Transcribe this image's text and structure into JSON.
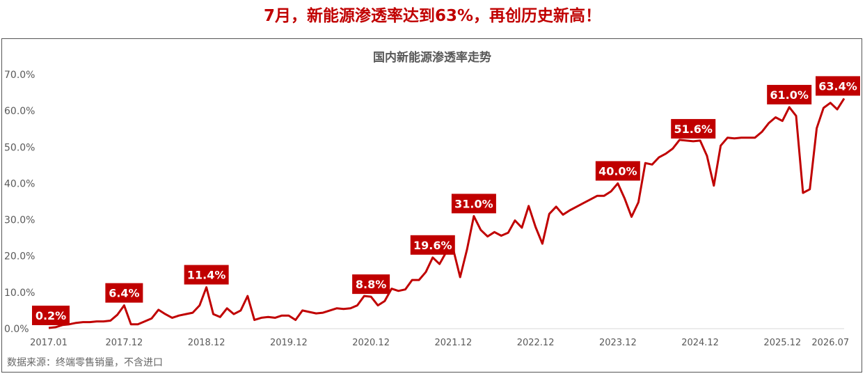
{
  "headline": "7月，新能源渗透率达到63%，再创历史新高！",
  "source_note": "数据来源：终端零售销量，不含进口",
  "colors": {
    "accent": "#c00000",
    "line": "#c00000",
    "label_bg": "#c00000",
    "label_text": "#ffffff",
    "axis_text": "#595959"
  },
  "chart_data": {
    "type": "line",
    "title": "国内新能源渗透率走势",
    "xlabel": "",
    "ylabel": "",
    "ylim": [
      0,
      70
    ],
    "yticks": [
      "0.0%",
      "10.0%",
      "20.0%",
      "30.0%",
      "40.0%",
      "50.0%",
      "60.0%",
      "70.0%"
    ],
    "xticks": [
      "2017.01",
      "2017.12",
      "2018.12",
      "2019.12",
      "2020.12",
      "2021.12",
      "2022.12",
      "2023.12",
      "2024.12",
      "2025.12",
      "2026.07"
    ],
    "grid": false,
    "x_start": "2017.01",
    "x_end": "2026.07",
    "values": [
      0.2,
      0.4,
      1.0,
      1.2,
      1.6,
      1.8,
      1.8,
      2.0,
      2.0,
      2.2,
      3.8,
      6.4,
      1.2,
      1.2,
      2.0,
      2.8,
      5.2,
      4.0,
      3.0,
      3.6,
      4.0,
      4.4,
      6.4,
      11.4,
      4.0,
      3.2,
      5.6,
      4.0,
      5.0,
      9.0,
      2.4,
      3.0,
      3.2,
      3.0,
      3.6,
      3.6,
      2.4,
      5.0,
      4.6,
      4.2,
      4.4,
      5.0,
      5.6,
      5.4,
      5.6,
      6.4,
      9.0,
      8.8,
      6.4,
      7.6,
      11.0,
      10.4,
      10.8,
      13.4,
      13.4,
      15.6,
      19.6,
      17.8,
      21.2,
      21.8,
      14.2,
      21.8,
      31.0,
      27.2,
      25.4,
      26.6,
      25.6,
      26.4,
      29.8,
      27.8,
      33.8,
      28.0,
      23.4,
      31.6,
      33.6,
      31.4,
      32.6,
      33.6,
      34.6,
      35.6,
      36.6,
      36.6,
      37.8,
      40.0,
      35.8,
      30.8,
      34.8,
      45.6,
      45.2,
      47.2,
      48.2,
      49.6,
      52.0,
      51.8,
      51.6,
      51.8,
      47.6,
      39.4,
      50.4,
      52.6,
      52.4,
      52.6,
      52.6,
      52.6,
      54.2,
      56.6,
      58.2,
      57.2,
      61.0,
      58.6,
      37.4,
      38.4,
      55.2,
      60.8,
      62.2,
      60.4,
      63.4
    ],
    "annotations": [
      {
        "label": "0.2%",
        "index": 0,
        "value": 0.2
      },
      {
        "label": "6.4%",
        "index": 11,
        "value": 6.4
      },
      {
        "label": "11.4%",
        "index": 23,
        "value": 11.4
      },
      {
        "label": "8.8%",
        "index": 47,
        "value": 8.8
      },
      {
        "label": "19.6%",
        "index": 56,
        "value": 19.6
      },
      {
        "label": "31.0%",
        "index": 62,
        "value": 31.0
      },
      {
        "label": "40.0%",
        "index": 83,
        "value": 40.0
      },
      {
        "label": "51.6%",
        "index": 94,
        "value": 51.6
      },
      {
        "label": "61.0%",
        "index": 108,
        "value": 61.0
      },
      {
        "label": "63.4%",
        "index": 116,
        "value": 63.4
      }
    ]
  }
}
